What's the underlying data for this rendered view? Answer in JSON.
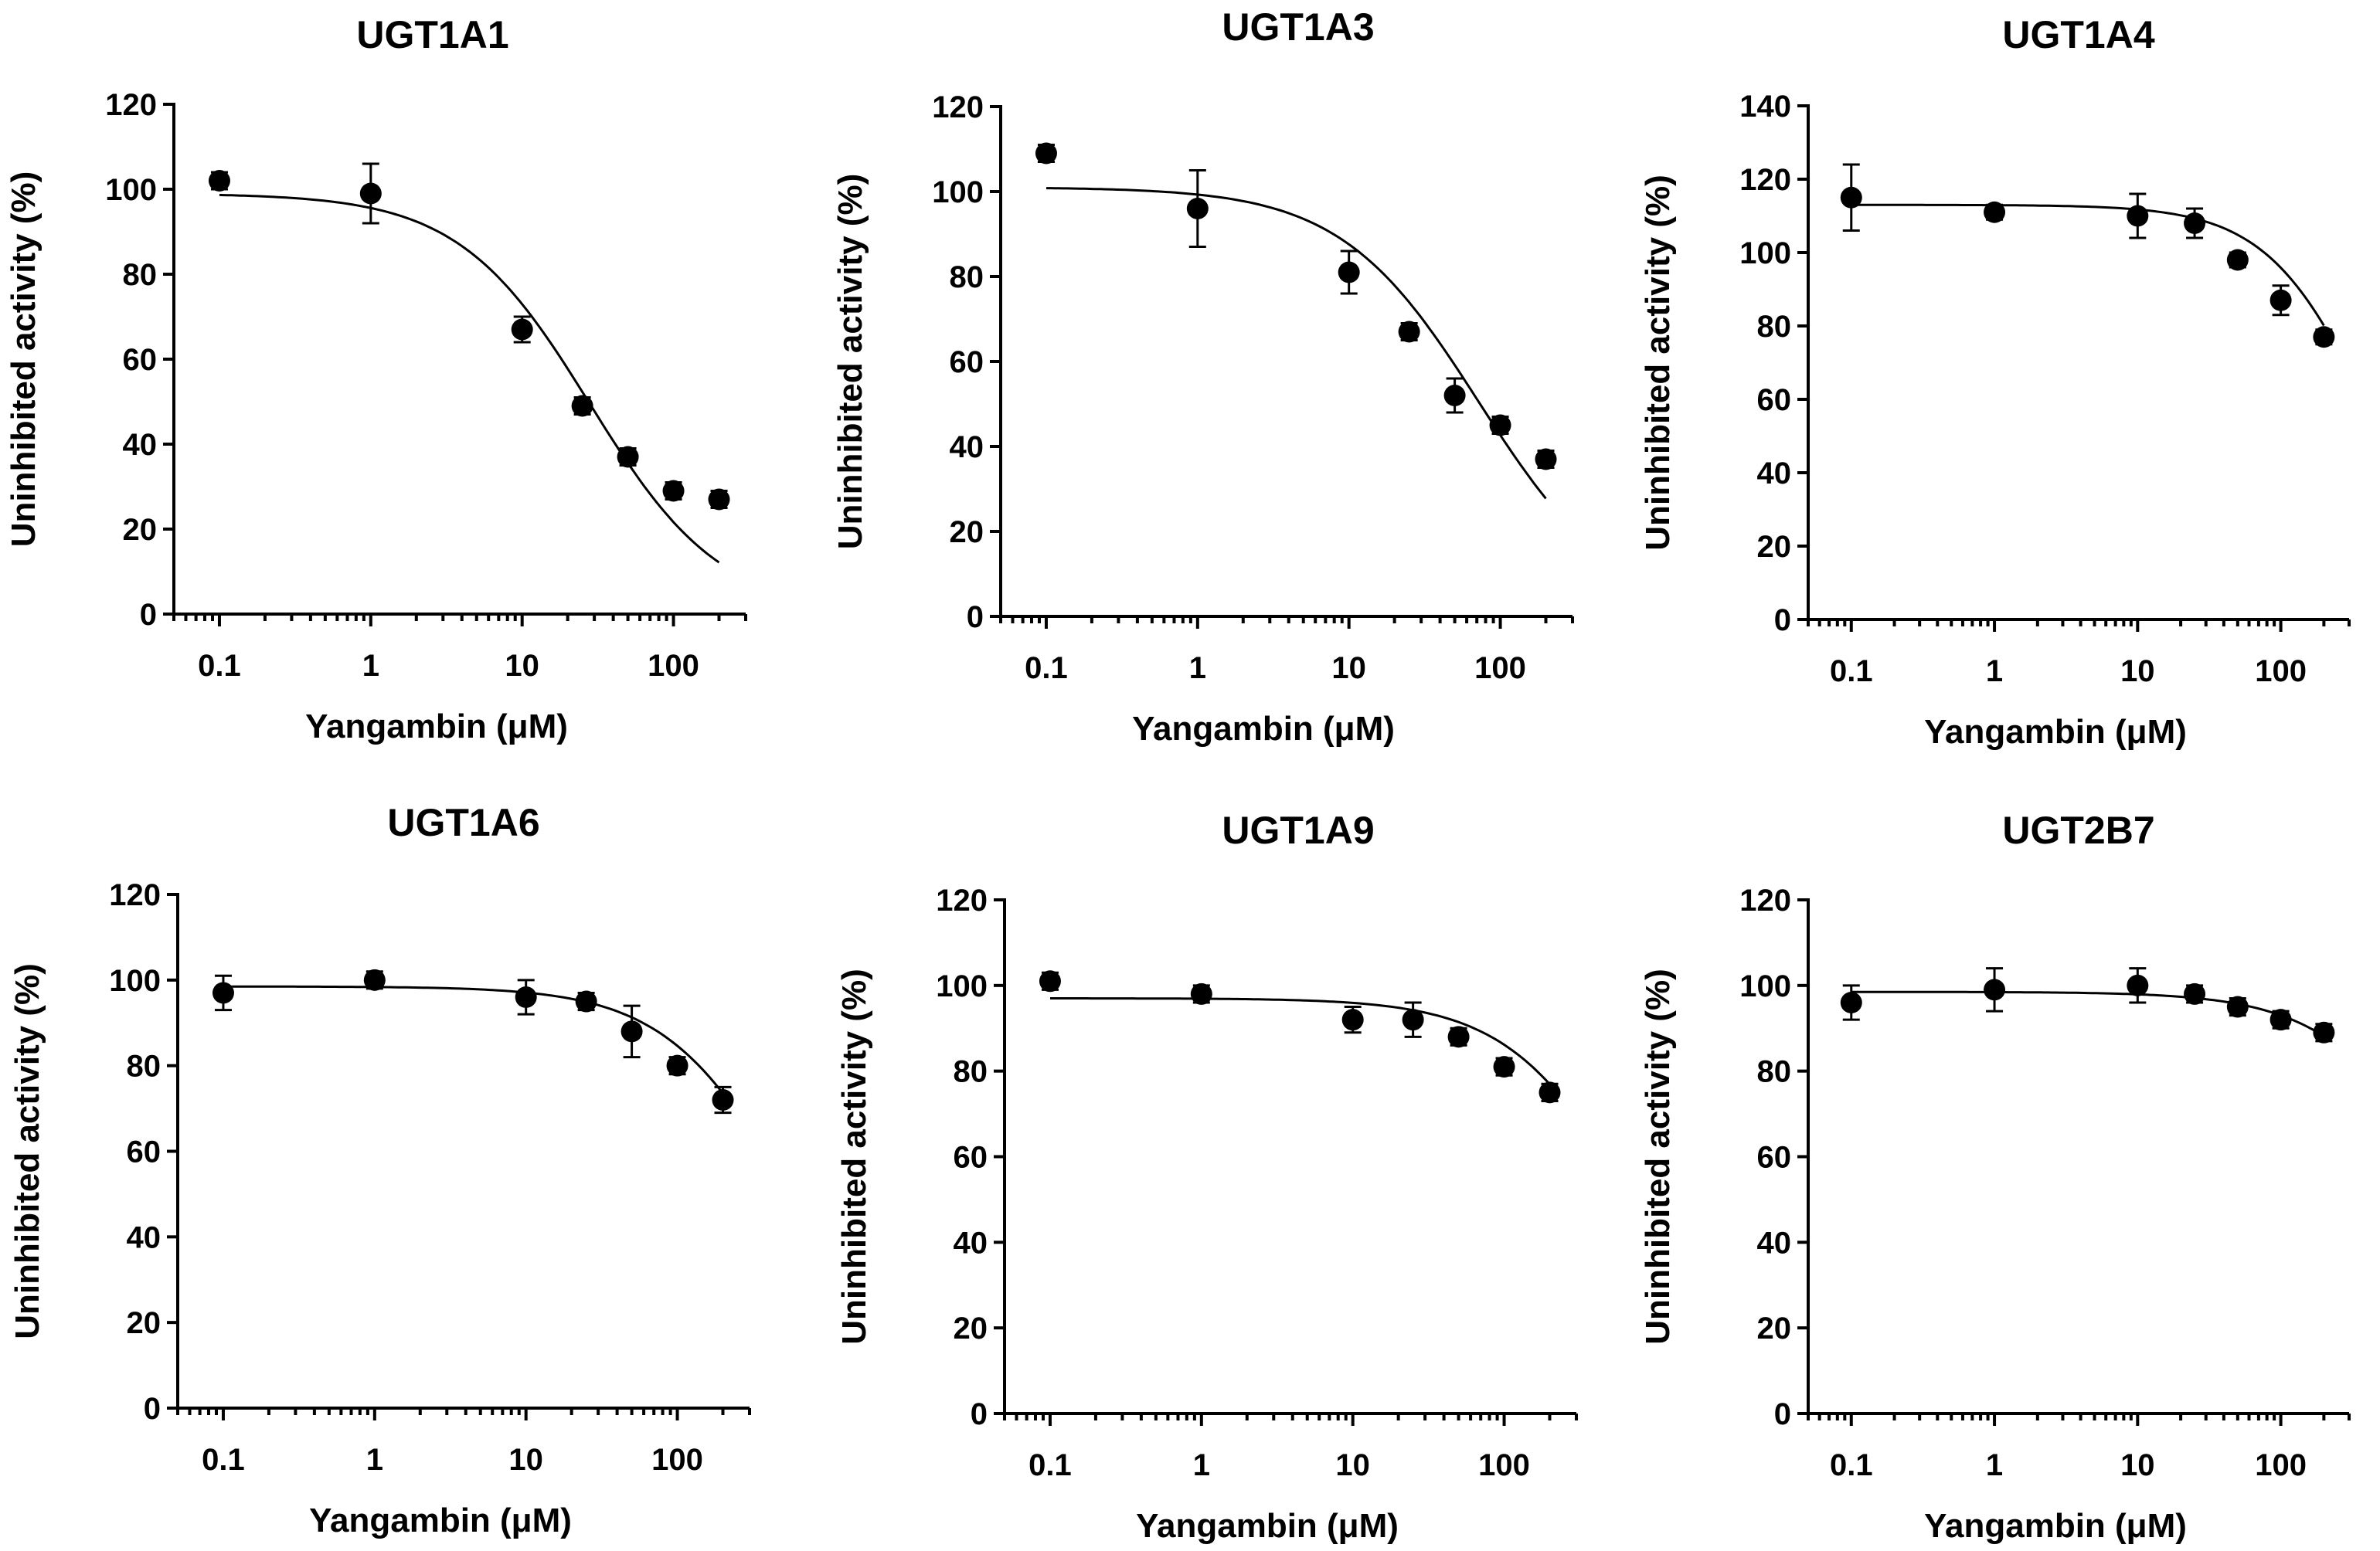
{
  "chart_data": [
    {
      "type": "scatter",
      "title": "UGT1A1",
      "xlabel": "Yangambin (μM)",
      "ylabel": "Uninhibited activity (%)",
      "xscale": "log",
      "xlim": [
        0.05,
        300
      ],
      "ylim": [
        0,
        120
      ],
      "xticks": [
        0.1,
        1,
        10,
        100
      ],
      "xtick_labels": [
        "0.1",
        "1",
        "10",
        "100"
      ],
      "yticks": [
        0,
        20,
        40,
        60,
        80,
        100,
        120
      ],
      "ytick_labels": [
        "0",
        "20",
        "40",
        "60",
        "80",
        "100",
        "120"
      ],
      "series": [
        {
          "name": "UGT1A1",
          "x": [
            0.1,
            1,
            10,
            25,
            50,
            100,
            200
          ],
          "y": [
            102,
            99,
            67,
            49,
            37,
            29,
            27
          ],
          "err": [
            2,
            7,
            3,
            2,
            2,
            2,
            2
          ]
        }
      ],
      "fit": {
        "top": 99,
        "ic50": 28,
        "hill": 1
      }
    },
    {
      "type": "scatter",
      "title": "UGT1A3",
      "xlabel": "Yangambin (μM)",
      "ylabel": "Uninhibited activity (%)",
      "xscale": "log",
      "xlim": [
        0.05,
        300
      ],
      "ylim": [
        0,
        120
      ],
      "xticks": [
        0.1,
        1,
        10,
        100
      ],
      "xtick_labels": [
        "0.1",
        "1",
        "10",
        "100"
      ],
      "yticks": [
        0,
        20,
        40,
        60,
        80,
        100,
        120
      ],
      "ytick_labels": [
        "0",
        "20",
        "40",
        "60",
        "80",
        "100",
        "120"
      ],
      "series": [
        {
          "name": "UGT1A3",
          "x": [
            0.1,
            1,
            10,
            25,
            50,
            100,
            200
          ],
          "y": [
            109,
            96,
            81,
            67,
            52,
            45,
            37
          ],
          "err": [
            2,
            9,
            5,
            2,
            4,
            2,
            2
          ]
        }
      ],
      "fit": {
        "top": 101,
        "ic50": 72,
        "hill": 0.95
      }
    },
    {
      "type": "scatter",
      "title": "UGT1A4",
      "xlabel": "Yangambin (μM)",
      "ylabel": "Uninhibited activity (%)",
      "xscale": "log",
      "xlim": [
        0.05,
        300
      ],
      "ylim": [
        0,
        140
      ],
      "xticks": [
        0.1,
        1,
        10,
        100
      ],
      "xtick_labels": [
        "0.1",
        "1",
        "10",
        "100"
      ],
      "yticks": [
        0,
        20,
        40,
        60,
        80,
        100,
        120,
        140
      ],
      "ytick_labels": [
        "0",
        "20",
        "40",
        "60",
        "80",
        "100",
        "120",
        "140"
      ],
      "series": [
        {
          "name": "UGT1A4",
          "x": [
            0.1,
            1,
            10,
            25,
            50,
            100,
            200
          ],
          "y": [
            115,
            111,
            110,
            108,
            98,
            87,
            77
          ],
          "err": [
            9,
            2,
            6,
            4,
            2,
            4,
            2
          ]
        }
      ],
      "fit": {
        "top": 113,
        "ic50": 420,
        "hill": 1.2
      }
    },
    {
      "type": "scatter",
      "title": "UGT1A6",
      "xlabel": "Yangambin (μM)",
      "ylabel": "Uninhibited activity (%)",
      "xscale": "log",
      "xlim": [
        0.05,
        300
      ],
      "ylim": [
        0,
        120
      ],
      "xticks": [
        0.1,
        1,
        10,
        100
      ],
      "xtick_labels": [
        "0.1",
        "1",
        "10",
        "100"
      ],
      "yticks": [
        0,
        20,
        40,
        60,
        80,
        100,
        120
      ],
      "ytick_labels": [
        "0",
        "20",
        "40",
        "60",
        "80",
        "100",
        "120"
      ],
      "series": [
        {
          "name": "UGT1A6",
          "x": [
            0.1,
            1,
            10,
            25,
            50,
            100,
            200
          ],
          "y": [
            97,
            100,
            96,
            95,
            88,
            80,
            72
          ],
          "err": [
            4,
            2,
            4,
            2,
            6,
            2,
            3
          ]
        }
      ],
      "fit": {
        "top": 98.5,
        "ic50": 560,
        "hill": 1.05
      }
    },
    {
      "type": "scatter",
      "title": "UGT1A9",
      "xlabel": "Yangambin (μM)",
      "ylabel": "Uninhibited activity (%)",
      "xscale": "log",
      "xlim": [
        0.05,
        300
      ],
      "ylim": [
        0,
        120
      ],
      "xticks": [
        0.1,
        1,
        10,
        100
      ],
      "xtick_labels": [
        "0.1",
        "1",
        "10",
        "100"
      ],
      "yticks": [
        0,
        20,
        40,
        60,
        80,
        100,
        120
      ],
      "ytick_labels": [
        "0",
        "20",
        "40",
        "60",
        "80",
        "100",
        "120"
      ],
      "series": [
        {
          "name": "UGT1A9",
          "x": [
            0.1,
            1,
            10,
            25,
            50,
            100,
            200
          ],
          "y": [
            101,
            98,
            92,
            92,
            88,
            81,
            75
          ],
          "err": [
            2,
            2,
            3,
            4,
            2,
            2,
            2
          ]
        }
      ],
      "fit": {
        "top": 97,
        "ic50": 720,
        "hill": 1.05
      }
    },
    {
      "type": "scatter",
      "title": "UGT2B7",
      "xlabel": "Yangambin (μM)",
      "ylabel": "Uninhibited activity (%)",
      "xscale": "log",
      "xlim": [
        0.05,
        300
      ],
      "ylim": [
        0,
        120
      ],
      "xticks": [
        0.1,
        1,
        10,
        100
      ],
      "xtick_labels": [
        "0.1",
        "1",
        "10",
        "100"
      ],
      "yticks": [
        0,
        20,
        40,
        60,
        80,
        100,
        120
      ],
      "ytick_labels": [
        "0",
        "20",
        "40",
        "60",
        "80",
        "100",
        "120"
      ],
      "series": [
        {
          "name": "UGT2B7",
          "x": [
            0.1,
            1,
            10,
            25,
            50,
            100,
            200
          ],
          "y": [
            96,
            99,
            100,
            98,
            95,
            92,
            89
          ],
          "err": [
            4,
            5,
            4,
            2,
            2,
            2,
            2
          ]
        }
      ],
      "fit": {
        "top": 98.5,
        "ic50": 1700,
        "hill": 1
      }
    }
  ]
}
